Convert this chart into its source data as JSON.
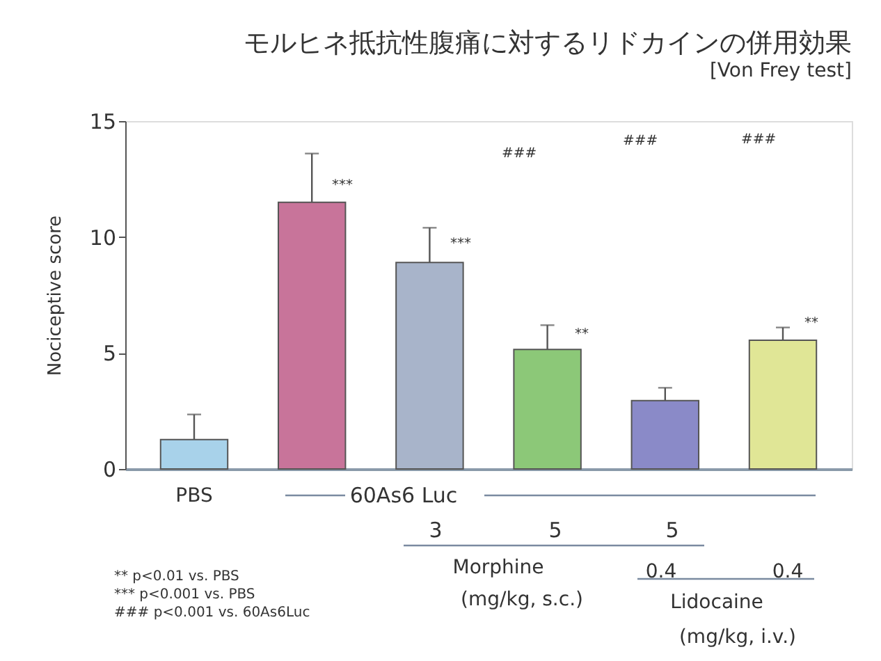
{
  "chart_data": {
    "type": "bar",
    "title": "モルヒネ抵抗性腹痛に対するリドカインの併用効果",
    "subtitle": "[Von Frey test]",
    "ylabel": "Nociceptive score",
    "categories": [
      "PBS",
      null,
      null,
      null,
      null,
      null
    ],
    "values": [
      1.27,
      11.5,
      8.9,
      5.15,
      2.95,
      5.55
    ],
    "colors": [
      "#a8d2ea",
      "#c8749a",
      "#a8b4ca",
      "#8cc878",
      "#8a8ac8",
      "#e0e696"
    ],
    "errors": [
      [
        1.27,
        2.35
      ],
      [
        11.5,
        13.6
      ],
      [
        8.9,
        10.4
      ],
      [
        5.15,
        6.2
      ],
      [
        2.95,
        3.5
      ],
      [
        5.55,
        6.1
      ]
    ],
    "ylim": [
      0,
      15
    ],
    "yticks": [
      0,
      5,
      10,
      15
    ],
    "grid": false,
    "annotations": [
      "60As6 Luc",
      "3",
      "5",
      "5",
      "Morphine",
      "(mg/kg, s.c.)",
      "0.4",
      "0.4",
      "Lidocaine",
      "(mg/kg, i.v.)",
      "***",
      "***",
      "**",
      "**",
      "###",
      "###",
      "###",
      "** p<0.01 vs. PBS",
      "*** p<0.001 vs. PBS",
      "### p<0.001 vs. 60As6Luc"
    ]
  }
}
